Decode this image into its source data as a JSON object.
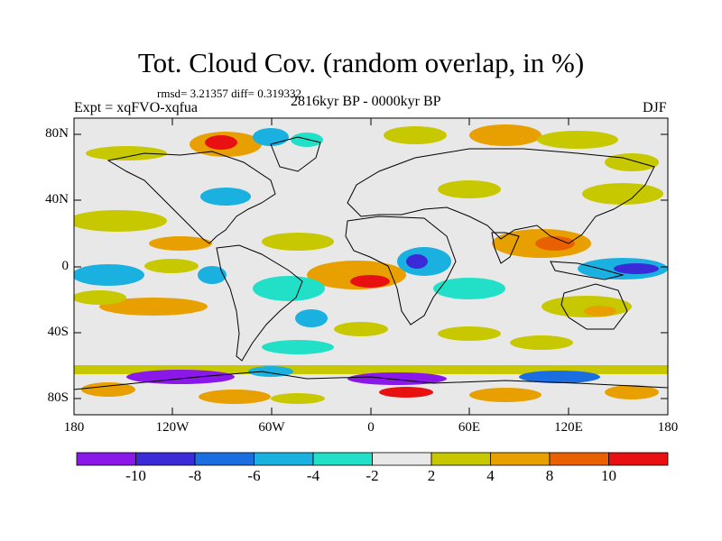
{
  "title": "Tot. Cloud Cov. (random overlap, in %)",
  "stats": "rmsd= 3.21357 diff= 0.319332",
  "experiment": "Expt = xqFVO-xqfua",
  "period": "2816kyr BP - 0000kyr BP",
  "season": "DJF",
  "map": {
    "lat_ticks": [
      "80N",
      "40N",
      "0",
      "40S",
      "80S"
    ],
    "lon_ticks": [
      "180",
      "120W",
      "60W",
      "0",
      "60E",
      "120E",
      "180"
    ],
    "background_color": "#e8e8e8"
  },
  "colorbar": {
    "labels": [
      "-10",
      "-8",
      "-6",
      "-4",
      "-2",
      "2",
      "4",
      "8",
      "10"
    ],
    "colors": [
      "#8a18e8",
      "#3a2ad8",
      "#1a6ee0",
      "#1ab0e0",
      "#22e0c8",
      "#e8e8e8",
      "#c8c800",
      "#e8a000",
      "#e86000",
      "#e81010"
    ]
  }
}
